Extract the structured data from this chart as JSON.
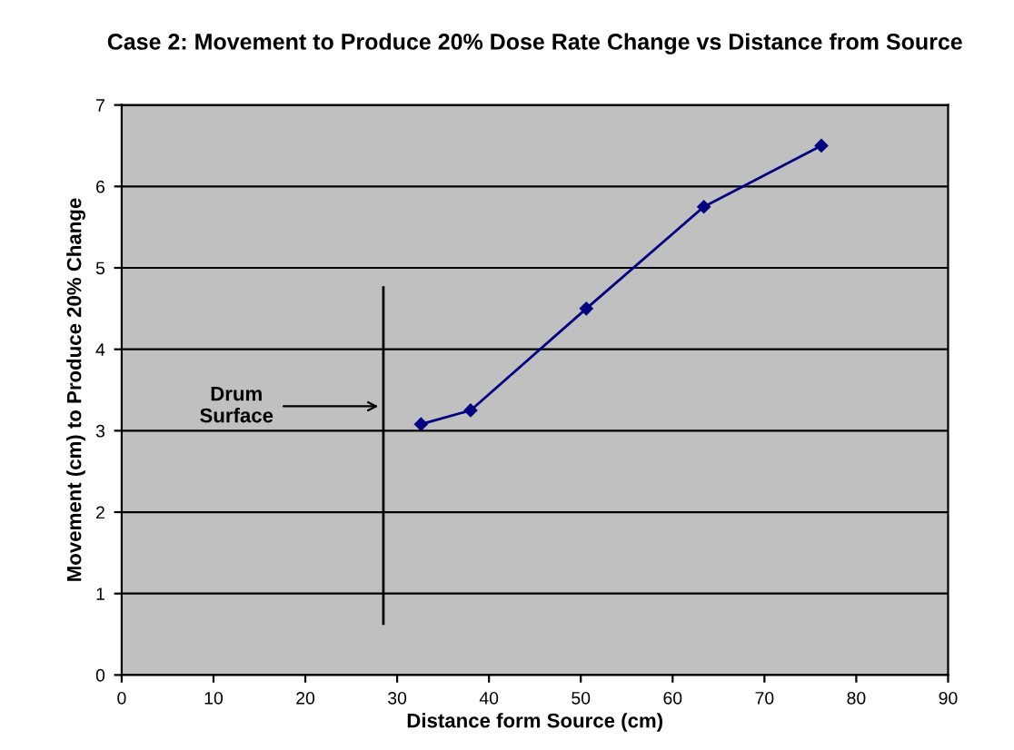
{
  "chart_data": {
    "type": "line",
    "title": "Case 2: Movement to Produce 20% Dose Rate Change vs Distance from Source",
    "xlabel": "Distance form Source (cm)",
    "ylabel": "Movement (cm) to Produce 20% Change",
    "x": [
      32.6,
      38,
      50.6,
      63.4,
      76.2
    ],
    "series": [
      {
        "color": "#000080",
        "values": [
          3.08,
          3.25,
          4.5,
          5.75,
          6.5
        ]
      }
    ],
    "xlim": [
      0,
      90
    ],
    "xticks": [
      0,
      10,
      20,
      30,
      40,
      50,
      60,
      70,
      80,
      90
    ],
    "ylim": [
      0,
      7
    ],
    "yticks": [
      0,
      1,
      2,
      3,
      4,
      5,
      6,
      7
    ],
    "grid": "y",
    "marker": "diamond",
    "line_style": "solid",
    "legend": false,
    "ref_lines": [
      {
        "axis": "x",
        "value": 28.5,
        "color": "#000000"
      }
    ],
    "annotations": [
      {
        "text": "Drum\nSurface",
        "x": 28.5,
        "y": 3.3
      }
    ]
  }
}
